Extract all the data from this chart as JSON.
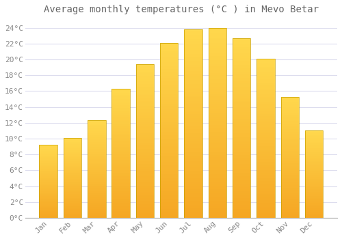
{
  "title": "Average monthly temperatures (°C ) in Mevo Betar",
  "months": [
    "Jan",
    "Feb",
    "Mar",
    "Apr",
    "May",
    "Jun",
    "Jul",
    "Aug",
    "Sep",
    "Oct",
    "Nov",
    "Dec"
  ],
  "values": [
    9.2,
    10.1,
    12.3,
    16.3,
    19.4,
    22.1,
    23.8,
    24.0,
    22.7,
    20.1,
    15.3,
    11.0
  ],
  "bar_color_bottom": "#F5A623",
  "bar_color_top": "#FFD84D",
  "bar_edge_color": "#C8A000",
  "background_color": "#FFFFFF",
  "grid_color": "#DDDDEE",
  "text_color": "#888888",
  "title_color": "#666666",
  "ylim": [
    0,
    25
  ],
  "ylim_display_max": 24,
  "ytick_step": 2,
  "title_fontsize": 10,
  "tick_fontsize": 8,
  "font_family": "monospace"
}
